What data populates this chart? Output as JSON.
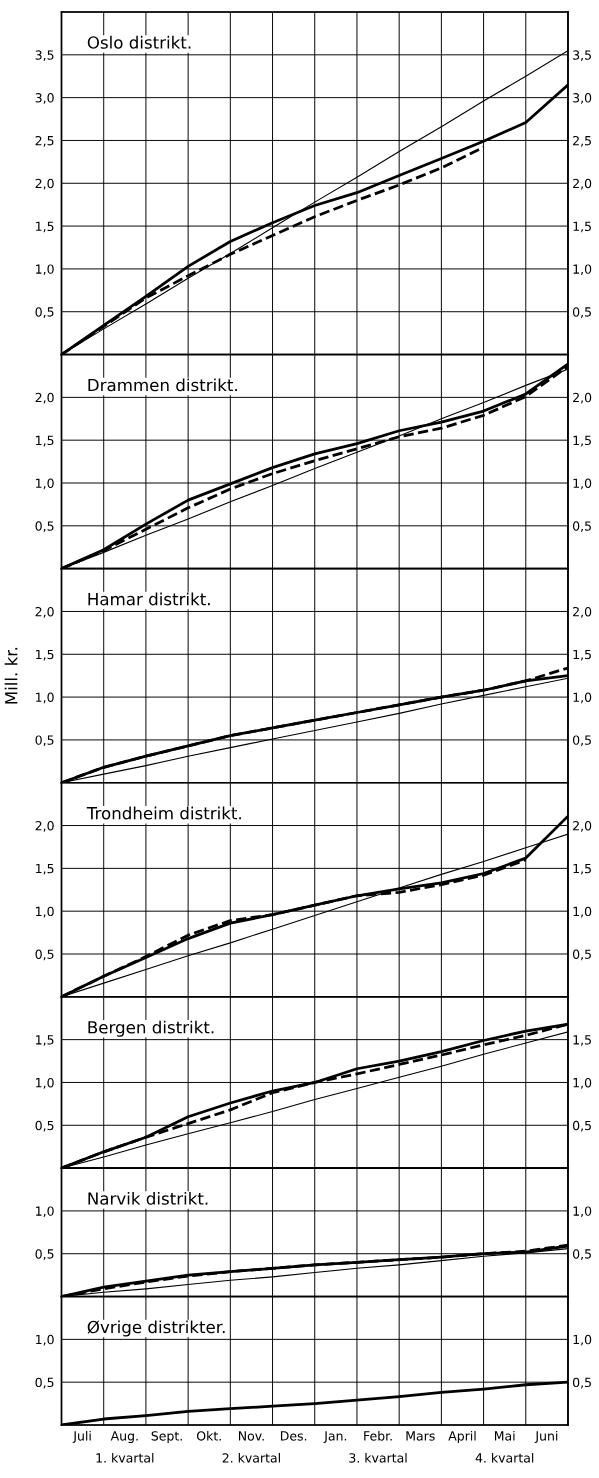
{
  "chart_data": [
    {
      "type": "line",
      "title": "Oslo distrikt.",
      "categories": [
        null,
        null,
        null,
        null,
        null,
        null,
        null,
        null,
        null,
        null,
        null,
        null,
        null
      ],
      "ylim": [
        0,
        4.0
      ],
      "yticks": [
        {
          "value": 0.5,
          "label": "0,5"
        },
        {
          "value": 1.0,
          "label": "1,0"
        },
        {
          "value": 1.5,
          "label": "1,5"
        },
        {
          "value": 2.0,
          "label": "2,0"
        },
        {
          "value": 2.5,
          "label": "2,5"
        },
        {
          "value": 3.0,
          "label": "3,0"
        },
        {
          "value": 3.5,
          "label": "3,5"
        }
      ],
      "y2lim": [
        0,
        4.0
      ],
      "y2ticks": [
        {
          "value": 0.5,
          "label": "0,5"
        },
        {
          "value": 1.0,
          "label": "1,0"
        },
        {
          "value": 1.5,
          "label": "1,5"
        },
        {
          "value": 2.0,
          "label": "2,0"
        },
        {
          "value": 2.5,
          "label": "2,5"
        },
        {
          "value": 3.0,
          "label": "3,0"
        },
        {
          "value": 3.5,
          "label": "3,5"
        }
      ],
      "grid": true,
      "tick_labels": "y",
      "series": [
        {
          "color": "#000000",
          "line_style": "solid",
          "values": [
            0,
            0.34,
            0.68,
            1.03,
            1.32,
            1.54,
            1.74,
            1.89,
            2.09,
            2.29,
            2.49,
            2.71,
            3.15
          ]
        },
        {
          "color": "#000000",
          "line_style": "dashed",
          "values": [
            0,
            0.33,
            0.66,
            0.92,
            1.17,
            1.39,
            1.61,
            1.8,
            1.98,
            2.18,
            2.42,
            null,
            null
          ]
        },
        {
          "color": "#000000",
          "line_style": "solid",
          "values": [
            0,
            0.3,
            0.59,
            0.89,
            1.18,
            1.48,
            1.78,
            2.07,
            2.37,
            2.66,
            2.96,
            3.25,
            3.55
          ]
        }
      ]
    },
    {
      "type": "line",
      "title": "Drammen distrikt.",
      "categories": [
        null,
        null,
        null,
        null,
        null,
        null,
        null,
        null,
        null,
        null,
        null,
        null,
        null
      ],
      "ylim": [
        0,
        2.5
      ],
      "yticks": [
        {
          "value": 0.5,
          "label": "0,5"
        },
        {
          "value": 1.0,
          "label": "1,0"
        },
        {
          "value": 1.5,
          "label": "1,5"
        },
        {
          "value": 2.0,
          "label": "2,0"
        }
      ],
      "y2lim": [
        0,
        2.5
      ],
      "y2ticks": [
        {
          "value": 0.5,
          "label": "0,5"
        },
        {
          "value": 1.0,
          "label": "1,0"
        },
        {
          "value": 1.5,
          "label": "1,5"
        },
        {
          "value": 2.0,
          "label": "2,0"
        }
      ],
      "grid": true,
      "tick_labels": "y",
      "series": [
        {
          "color": "#000000",
          "line_style": "solid",
          "values": [
            0,
            0.22,
            0.52,
            0.8,
            0.99,
            1.18,
            1.34,
            1.46,
            1.61,
            1.71,
            1.84,
            2.04,
            2.39
          ]
        },
        {
          "color": "#000000",
          "line_style": "dashed",
          "values": [
            0,
            0.21,
            0.46,
            0.71,
            0.93,
            1.11,
            1.26,
            1.4,
            1.54,
            1.64,
            1.79,
            2.01,
            2.36
          ]
        },
        {
          "color": "#000000",
          "line_style": "solid",
          "values": [
            0,
            0.19,
            0.39,
            0.58,
            0.78,
            0.97,
            1.17,
            1.36,
            1.55,
            1.75,
            1.94,
            2.14,
            2.33
          ]
        }
      ]
    },
    {
      "type": "line",
      "title": "Hamar distrikt.",
      "ylabel": "Mill. kr.",
      "categories": [
        null,
        null,
        null,
        null,
        null,
        null,
        null,
        null,
        null,
        null,
        null,
        null,
        null
      ],
      "ylim": [
        0,
        2.5
      ],
      "yticks": [
        {
          "value": 0.5,
          "label": "0,5"
        },
        {
          "value": 1.0,
          "label": "1,0"
        },
        {
          "value": 1.5,
          "label": "1,5"
        },
        {
          "value": 2.0,
          "label": "2,0"
        }
      ],
      "y2lim": [
        0,
        2.5
      ],
      "y2ticks": [
        {
          "value": 0.5,
          "label": "0,5"
        },
        {
          "value": 1.0,
          "label": "1,0"
        },
        {
          "value": 1.5,
          "label": "1,5"
        },
        {
          "value": 2.0,
          "label": "2,0"
        }
      ],
      "grid": true,
      "tick_labels": "y",
      "series": [
        {
          "color": "#000000",
          "line_style": "solid",
          "values": [
            0,
            0.18,
            0.31,
            0.43,
            0.55,
            0.64,
            0.73,
            0.82,
            0.91,
            1.0,
            1.08,
            1.19,
            1.25
          ]
        },
        {
          "color": "#000000",
          "line_style": "dashed",
          "values": [
            0,
            0.18,
            0.31,
            0.43,
            0.55,
            0.64,
            0.73,
            0.82,
            0.91,
            1.0,
            1.08,
            1.19,
            1.34
          ]
        },
        {
          "color": "#000000",
          "line_style": "solid",
          "values": [
            0,
            0.1,
            0.2,
            0.31,
            0.41,
            0.51,
            0.61,
            0.71,
            0.81,
            0.92,
            1.02,
            1.12,
            1.22
          ]
        }
      ]
    },
    {
      "type": "line",
      "title": "Trondheim distrikt.",
      "categories": [
        null,
        null,
        null,
        null,
        null,
        null,
        null,
        null,
        null,
        null,
        null,
        null,
        null
      ],
      "ylim": [
        0,
        2.5
      ],
      "yticks": [
        {
          "value": 0.5,
          "label": "0,5"
        },
        {
          "value": 1.0,
          "label": "1,0"
        },
        {
          "value": 1.5,
          "label": "1,5"
        },
        {
          "value": 2.0,
          "label": "2,0"
        }
      ],
      "y2lim": [
        0,
        2.5
      ],
      "y2ticks": [
        {
          "value": 0.5,
          "label": "0,5"
        },
        {
          "value": 1.0,
          "label": "1,0"
        },
        {
          "value": 1.5,
          "label": "1,5"
        },
        {
          "value": 2.0,
          "label": "2,0"
        }
      ],
      "grid": true,
      "tick_labels": "y",
      "series": [
        {
          "color": "#000000",
          "line_style": "solid",
          "values": [
            0,
            0.24,
            0.46,
            0.68,
            0.86,
            0.96,
            1.07,
            1.18,
            1.26,
            1.33,
            1.44,
            1.62,
            2.11
          ]
        },
        {
          "color": "#000000",
          "line_style": "dashed",
          "values": [
            0,
            0.24,
            0.47,
            0.72,
            0.89,
            0.96,
            1.07,
            1.18,
            1.22,
            1.31,
            1.42,
            1.6,
            null
          ]
        },
        {
          "color": "#000000",
          "line_style": "solid",
          "values": [
            0,
            0.16,
            0.32,
            0.48,
            0.63,
            0.79,
            0.95,
            1.11,
            1.27,
            1.43,
            1.58,
            1.74,
            1.9
          ]
        }
      ]
    },
    {
      "type": "line",
      "title": "Bergen distrikt.",
      "categories": [
        null,
        null,
        null,
        null,
        null,
        null,
        null,
        null,
        null,
        null,
        null,
        null,
        null
      ],
      "ylim": [
        0,
        2.0
      ],
      "yticks": [
        {
          "value": 0.5,
          "label": "0,5"
        },
        {
          "value": 1.0,
          "label": "1,0"
        },
        {
          "value": 1.5,
          "label": "1,5"
        }
      ],
      "y2lim": [
        0,
        2.0
      ],
      "y2ticks": [
        {
          "value": 0.5,
          "label": "0,5"
        },
        {
          "value": 1.0,
          "label": "1,0"
        },
        {
          "value": 1.5,
          "label": "1,5"
        }
      ],
      "grid": true,
      "tick_labels": "y",
      "series": [
        {
          "color": "#000000",
          "line_style": "solid",
          "values": [
            0,
            0.19,
            0.36,
            0.6,
            0.76,
            0.9,
            1.0,
            1.16,
            1.25,
            1.36,
            1.49,
            1.6,
            1.68
          ]
        },
        {
          "color": "#000000",
          "line_style": "dashed",
          "values": [
            0,
            0.19,
            0.36,
            0.52,
            0.68,
            0.88,
            1.0,
            1.1,
            1.21,
            1.32,
            1.44,
            1.55,
            1.68
          ]
        },
        {
          "color": "#000000",
          "line_style": "solid",
          "values": [
            0,
            0.13,
            0.27,
            0.4,
            0.53,
            0.66,
            0.8,
            0.93,
            1.06,
            1.19,
            1.33,
            1.46,
            1.59
          ]
        }
      ]
    },
    {
      "type": "line",
      "title": "Narvik distrikt.",
      "categories": [
        null,
        null,
        null,
        null,
        null,
        null,
        null,
        null,
        null,
        null,
        null,
        null,
        null
      ],
      "ylim": [
        0,
        1.5
      ],
      "yticks": [
        {
          "value": 0.5,
          "label": "0,5"
        },
        {
          "value": 1.0,
          "label": "1,0"
        }
      ],
      "y2lim": [
        0,
        1.5
      ],
      "y2ticks": [
        {
          "value": 0.5,
          "label": "0,5"
        },
        {
          "value": 1.0,
          "label": "1,0"
        }
      ],
      "grid": true,
      "tick_labels": "y",
      "series": [
        {
          "color": "#000000",
          "line_style": "solid",
          "values": [
            0,
            0.11,
            0.18,
            0.25,
            0.29,
            0.33,
            0.37,
            0.4,
            0.43,
            0.46,
            0.5,
            0.52,
            0.59
          ]
        },
        {
          "color": "#000000",
          "line_style": "dashed",
          "values": [
            0,
            0.09,
            0.17,
            0.24,
            0.29,
            0.33,
            0.37,
            0.4,
            0.43,
            0.46,
            0.5,
            0.53,
            0.6
          ]
        },
        {
          "color": "#000000",
          "line_style": "solid",
          "values": [
            0,
            0.05,
            0.09,
            0.14,
            0.19,
            0.23,
            0.28,
            0.33,
            0.37,
            0.42,
            0.47,
            0.51,
            0.56
          ]
        }
      ]
    },
    {
      "type": "line",
      "title": "Øvrige distrikter.",
      "categories": [
        null,
        null,
        null,
        null,
        null,
        null,
        null,
        null,
        null,
        null,
        null,
        null,
        null
      ],
      "ylim": [
        0,
        1.5
      ],
      "yticks": [
        {
          "value": 0.5,
          "label": "0,5"
        },
        {
          "value": 1.0,
          "label": "1,0"
        }
      ],
      "y2lim": [
        0,
        1.5
      ],
      "y2ticks": [
        {
          "value": 0.5,
          "label": "0,5"
        },
        {
          "value": 1.0,
          "label": "1,0"
        }
      ],
      "grid": true,
      "tick_labels": "y",
      "annotations": [
        "Juli",
        "Aug.",
        "Sept.",
        "Okt.",
        "Nov.",
        "Des.",
        "Jan.",
        "Febr.",
        "Mars",
        "April",
        "Mai",
        "Juni",
        "1. kvartal",
        "2. kvartal",
        "3. kvartal",
        "4. kvartal"
      ],
      "series": [
        {
          "color": "#000000",
          "line_style": "solid",
          "values": [
            0,
            0.07,
            0.11,
            0.16,
            0.19,
            0.22,
            0.25,
            0.29,
            0.33,
            0.38,
            0.42,
            0.47,
            0.5
          ]
        }
      ]
    }
  ]
}
